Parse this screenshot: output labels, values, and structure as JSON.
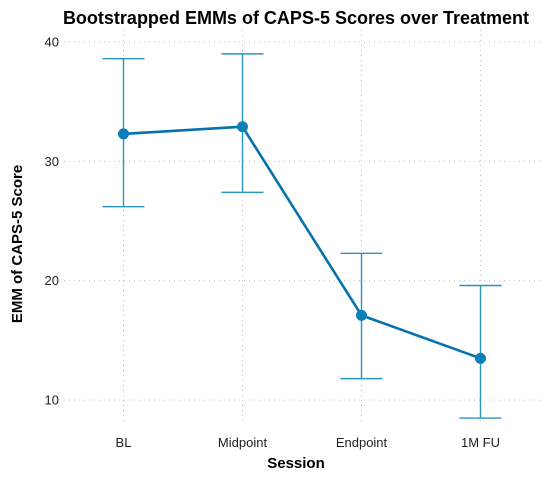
{
  "chart_data": {
    "type": "line",
    "title": "Bootstrapped EMMs of CAPS-5 Scores over Treatment",
    "xlabel": "Session",
    "ylabel": "EMM of CAPS-5 Score",
    "categories": [
      "BL",
      "Midpoint",
      "Endpoint",
      "1M FU"
    ],
    "series": [
      {
        "values": [
          32.3,
          32.9,
          17.1,
          13.5
        ],
        "ci_lower": [
          26.2,
          27.4,
          11.8,
          8.5
        ],
        "ci_upper": [
          38.6,
          39.0,
          22.3,
          19.6
        ]
      }
    ],
    "ylim": [
      8,
      41
    ],
    "yticks": [
      10,
      20,
      30,
      40
    ],
    "grid": true,
    "legend": "none",
    "colors": {
      "line": "#0572b0",
      "point": "#0a7fb8",
      "errorbar": "#2a94c0"
    }
  }
}
